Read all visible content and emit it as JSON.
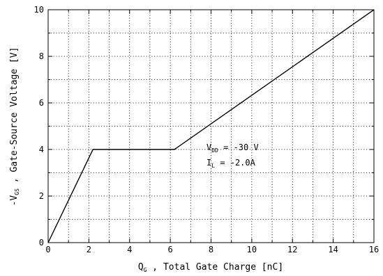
{
  "chart_data": {
    "type": "line",
    "xlabel": {
      "prefix": "Q",
      "sub": "G",
      "rest": " , Total Gate Charge  [nC]"
    },
    "ylabel": {
      "prefix": "-V",
      "sub": "GS",
      "rest": " , Gate-Source Voltage  [V]"
    },
    "xlim": [
      0,
      16
    ],
    "ylim": [
      0,
      10
    ],
    "xticks": [
      0,
      2,
      4,
      6,
      8,
      10,
      12,
      14,
      16
    ],
    "yticks": [
      0,
      2,
      4,
      6,
      8,
      10
    ],
    "grid": true,
    "series": [
      {
        "x": [
          0,
          2.2,
          6.2,
          16
        ],
        "y": [
          0,
          4.0,
          4.0,
          10.0
        ]
      }
    ],
    "annotations": [
      {
        "prefix": "V",
        "sub": "DD",
        "rest": " = -30 V"
      },
      {
        "prefix": "I",
        "sub": "L",
        "rest": " = -2.0A"
      }
    ]
  }
}
